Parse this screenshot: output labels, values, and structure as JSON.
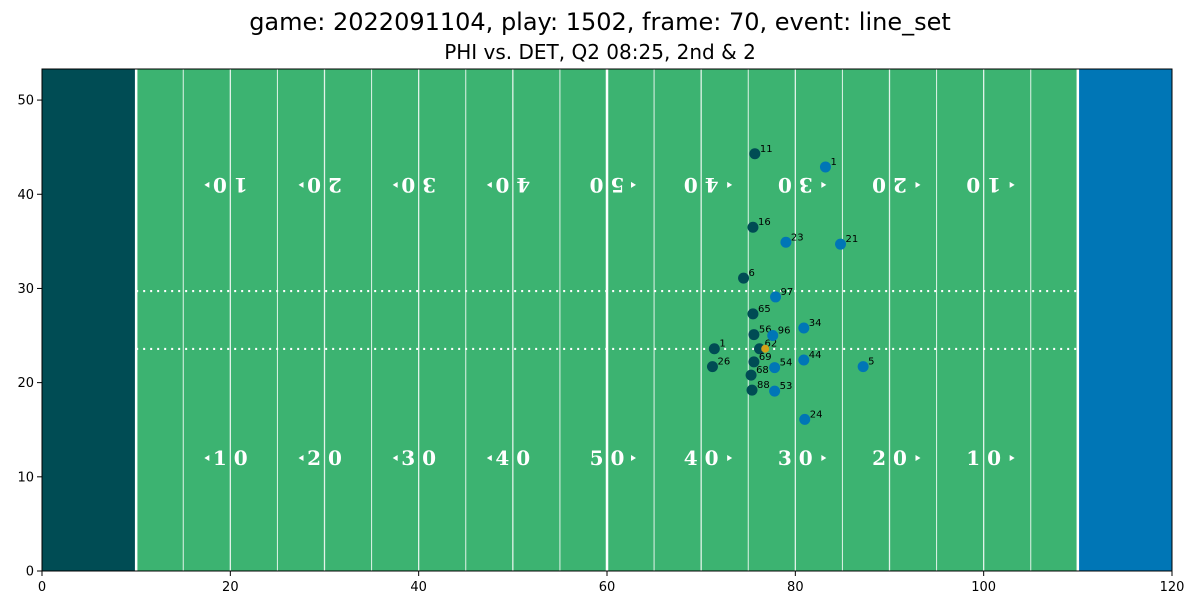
{
  "title": "game: 2022091104, play: 1502, frame: 70, event: line_set",
  "subtitle": "PHI vs. DET, Q2 08:25, 2nd & 2",
  "chart_data": {
    "type": "scatter",
    "xlim": [
      0,
      120
    ],
    "ylim": [
      0,
      53.3
    ],
    "x_ticks": [
      0,
      20,
      40,
      60,
      80,
      100,
      120
    ],
    "y_ticks": [
      0,
      10,
      20,
      30,
      40,
      50
    ],
    "grid": false,
    "colors": {
      "field": "#3cb371",
      "left_endzone": "#004c54",
      "right_endzone": "#0076b6",
      "team_dark": "#004c54",
      "team_blue": "#0076b6",
      "football": "#d4a017"
    },
    "yard_numbers": {
      "bottom": [
        "1 0",
        "2 0",
        "3 0",
        "4 0",
        "5 0",
        "4 0",
        "3 0",
        "2 0",
        "1 0"
      ],
      "top": [
        "1 0",
        "2 0",
        "3 0",
        "4 0",
        "5 0",
        "4 0",
        "3 0",
        "2 0",
        "1 0"
      ]
    },
    "series": [
      {
        "team": "dark",
        "points": [
          {
            "x": 75.7,
            "y": 44.3,
            "label": "11"
          },
          {
            "x": 75.5,
            "y": 36.5,
            "label": "16"
          },
          {
            "x": 74.5,
            "y": 31.1,
            "label": "6"
          },
          {
            "x": 75.5,
            "y": 27.3,
            "label": "65"
          },
          {
            "x": 75.6,
            "y": 25.1,
            "label": "56"
          },
          {
            "x": 71.4,
            "y": 23.6,
            "label": "1"
          },
          {
            "x": 76.2,
            "y": 23.6,
            "label": "62"
          },
          {
            "x": 75.6,
            "y": 22.2,
            "label": "69"
          },
          {
            "x": 71.2,
            "y": 21.7,
            "label": "26"
          },
          {
            "x": 75.3,
            "y": 20.8,
            "label": "68"
          },
          {
            "x": 75.4,
            "y": 19.2,
            "label": "88"
          }
        ]
      },
      {
        "team": "blue",
        "points": [
          {
            "x": 83.2,
            "y": 42.9,
            "label": "1"
          },
          {
            "x": 79.0,
            "y": 34.9,
            "label": "23"
          },
          {
            "x": 84.8,
            "y": 34.7,
            "label": "21"
          },
          {
            "x": 77.9,
            "y": 29.1,
            "label": "97"
          },
          {
            "x": 80.9,
            "y": 25.8,
            "label": "34"
          },
          {
            "x": 77.6,
            "y": 25.0,
            "label": "96"
          },
          {
            "x": 80.9,
            "y": 22.4,
            "label": "44"
          },
          {
            "x": 77.8,
            "y": 21.6,
            "label": "54"
          },
          {
            "x": 87.2,
            "y": 21.7,
            "label": "5"
          },
          {
            "x": 77.8,
            "y": 19.1,
            "label": "53"
          },
          {
            "x": 81.0,
            "y": 16.1,
            "label": "24"
          }
        ]
      }
    ],
    "football": {
      "x": 76.8,
      "y": 23.6
    }
  }
}
